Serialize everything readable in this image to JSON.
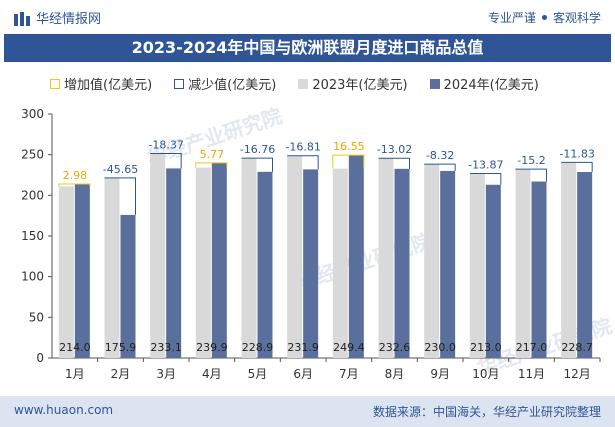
{
  "header": {
    "brand": "华经情报网",
    "tag1": "专业严谨",
    "tag2": "客观科学"
  },
  "title": "2023-2024年中国与欧洲联盟月度进口商品总值",
  "legend": {
    "increase": "增加值(亿美元)",
    "decrease": "减少值(亿美元)",
    "y2023": "2023年(亿美元)",
    "y2024": "2024年(亿美元)"
  },
  "colors": {
    "y2023": "#d9d9d9",
    "y2024": "#5b6f9c",
    "increase": "#f5c518",
    "decrease": "#2f5597",
    "label_increase": "#e6a800",
    "label_decrease": "#2f5597"
  },
  "chart_data": {
    "type": "bar",
    "categories": [
      "1月",
      "2月",
      "3月",
      "4月",
      "5月",
      "6月",
      "7月",
      "8月",
      "9月",
      "10月",
      "11月",
      "12月"
    ],
    "series": [
      {
        "name": "2023年(亿美元)",
        "values": [
          211.0,
          221.5,
          251.5,
          234.1,
          245.7,
          248.7,
          232.8,
          245.6,
          238.3,
          226.9,
          232.2,
          240.5
        ]
      },
      {
        "name": "2024年(亿美元)",
        "values": [
          214.0,
          175.9,
          233.1,
          239.9,
          228.9,
          231.9,
          249.4,
          232.6,
          230.0,
          213.0,
          217.0,
          228.7
        ]
      }
    ],
    "change_labels": [
      "2.98",
      "-45.65",
      "-18.37",
      "5.77",
      "-16.76",
      "-16.81",
      "16.55",
      "-13.02",
      "-8.32",
      "-13.87",
      "-15.2",
      "-11.83"
    ],
    "value_labels_2024": [
      "214.0",
      "175.9",
      "233.1",
      "239.9",
      "228.9",
      "231.9",
      "249.4",
      "232.6",
      "230.0",
      "213.0",
      "217.0",
      "228.7"
    ],
    "y_ticks": [
      "0",
      "50",
      "100",
      "150",
      "200",
      "250",
      "300"
    ],
    "ylim": [
      0,
      300
    ],
    "title": "2023-2024年中国与欧洲联盟月度进口商品总值"
  },
  "watermark": "华经产业研究院",
  "footer": {
    "left": "www.huaon.com",
    "right": "数据来源：中国海关，华经产业研究院整理"
  }
}
